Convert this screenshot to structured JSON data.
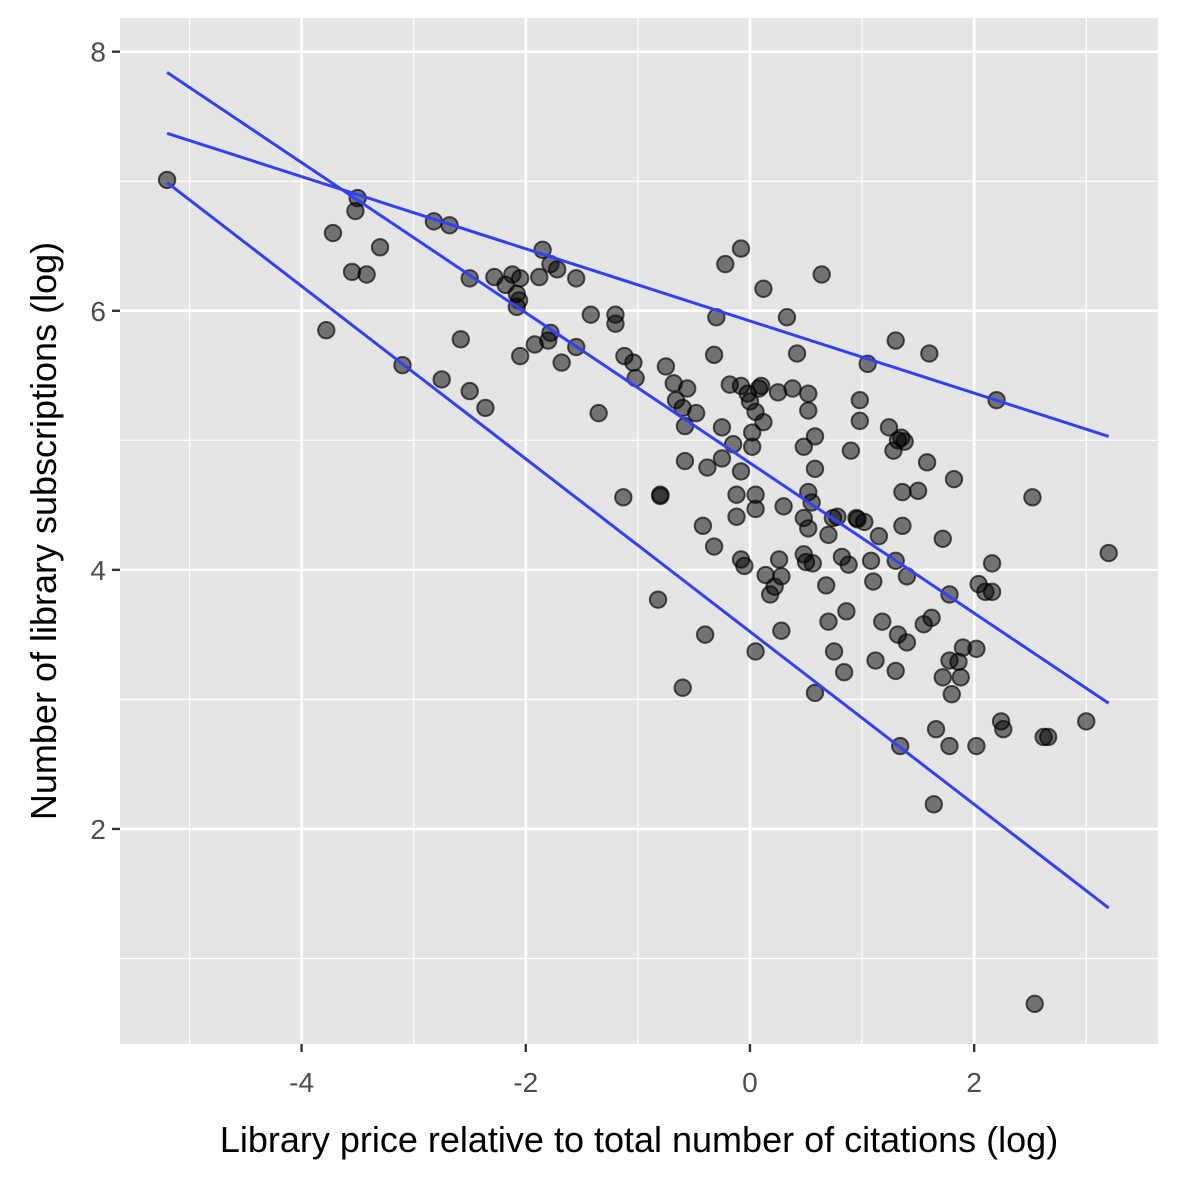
{
  "chart_data": {
    "type": "scatter",
    "title": "",
    "xlabel": "Library price relative to total number of citations (log)",
    "ylabel": "Number of library subscriptions (log)",
    "xlim": [
      -5.62,
      3.64
    ],
    "ylim": [
      0.34,
      8.26
    ],
    "xticks": [
      -4,
      -2,
      0,
      2
    ],
    "xtick_labels": [
      "-4",
      "-2",
      "0",
      "2"
    ],
    "yticks": [
      2,
      4,
      6,
      8
    ],
    "ytick_labels": [
      "2",
      "4",
      "6",
      "8"
    ],
    "grid": true,
    "panel_background": "#e5e5e5",
    "grid_color": "#ffffff",
    "point_color": "#000000",
    "point_alpha": 0.5,
    "line_color": "#3040ff",
    "lines": [
      {
        "x": [
          -5.2,
          3.2
        ],
        "y": [
          7.37,
          5.03
        ]
      },
      {
        "x": [
          -5.2,
          3.2
        ],
        "y": [
          7.84,
          2.97
        ]
      },
      {
        "x": [
          -5.2,
          3.2
        ],
        "y": [
          6.99,
          1.39
        ]
      }
    ],
    "points": [
      {
        "x": -5.2,
        "y": 7.01
      },
      {
        "x": -3.72,
        "y": 6.6
      },
      {
        "x": -3.5,
        "y": 6.87
      },
      {
        "x": -3.52,
        "y": 6.77
      },
      {
        "x": -3.55,
        "y": 6.3
      },
      {
        "x": -3.42,
        "y": 6.28
      },
      {
        "x": -3.3,
        "y": 6.49
      },
      {
        "x": -3.78,
        "y": 5.85
      },
      {
        "x": -3.1,
        "y": 5.58
      },
      {
        "x": -2.82,
        "y": 6.69
      },
      {
        "x": -2.68,
        "y": 6.66
      },
      {
        "x": -2.5,
        "y": 6.25
      },
      {
        "x": -2.58,
        "y": 5.78
      },
      {
        "x": -2.75,
        "y": 5.47
      },
      {
        "x": -2.5,
        "y": 5.38
      },
      {
        "x": -2.36,
        "y": 5.25
      },
      {
        "x": -2.28,
        "y": 6.26
      },
      {
        "x": -2.18,
        "y": 6.2
      },
      {
        "x": -2.12,
        "y": 6.28
      },
      {
        "x": -2.05,
        "y": 6.25
      },
      {
        "x": -2.08,
        "y": 6.13
      },
      {
        "x": -2.06,
        "y": 6.08
      },
      {
        "x": -2.08,
        "y": 6.03
      },
      {
        "x": -2.05,
        "y": 5.65
      },
      {
        "x": -1.92,
        "y": 5.74
      },
      {
        "x": -1.88,
        "y": 6.26
      },
      {
        "x": -1.85,
        "y": 6.47
      },
      {
        "x": -1.78,
        "y": 6.36
      },
      {
        "x": -1.72,
        "y": 6.32
      },
      {
        "x": -1.8,
        "y": 5.77
      },
      {
        "x": -1.78,
        "y": 5.83
      },
      {
        "x": -1.68,
        "y": 5.6
      },
      {
        "x": -1.55,
        "y": 5.72
      },
      {
        "x": -1.55,
        "y": 6.25
      },
      {
        "x": -1.42,
        "y": 5.97
      },
      {
        "x": -1.2,
        "y": 5.97
      },
      {
        "x": -1.2,
        "y": 5.9
      },
      {
        "x": -1.35,
        "y": 5.21
      },
      {
        "x": -1.12,
        "y": 5.65
      },
      {
        "x": -1.04,
        "y": 5.6
      },
      {
        "x": -1.02,
        "y": 5.48
      },
      {
        "x": -1.13,
        "y": 4.56
      },
      {
        "x": -0.8,
        "y": 4.57
      },
      {
        "x": -0.8,
        "y": 4.58
      },
      {
        "x": -0.82,
        "y": 3.77
      },
      {
        "x": -0.75,
        "y": 5.57
      },
      {
        "x": -0.68,
        "y": 5.44
      },
      {
        "x": -0.66,
        "y": 5.31
      },
      {
        "x": -0.6,
        "y": 5.25
      },
      {
        "x": -0.58,
        "y": 5.11
      },
      {
        "x": -0.56,
        "y": 5.4
      },
      {
        "x": -0.48,
        "y": 5.21
      },
      {
        "x": -0.58,
        "y": 4.84
      },
      {
        "x": -0.6,
        "y": 3.09
      },
      {
        "x": -0.42,
        "y": 4.34
      },
      {
        "x": -0.4,
        "y": 3.5
      },
      {
        "x": -0.32,
        "y": 4.18
      },
      {
        "x": -0.38,
        "y": 4.79
      },
      {
        "x": -0.3,
        "y": 5.95
      },
      {
        "x": -0.32,
        "y": 5.66
      },
      {
        "x": -0.25,
        "y": 4.86
      },
      {
        "x": -0.25,
        "y": 5.1
      },
      {
        "x": -0.22,
        "y": 6.36
      },
      {
        "x": -0.18,
        "y": 5.43
      },
      {
        "x": -0.15,
        "y": 4.97
      },
      {
        "x": -0.12,
        "y": 4.58
      },
      {
        "x": -0.12,
        "y": 4.41
      },
      {
        "x": -0.08,
        "y": 4.08
      },
      {
        "x": -0.05,
        "y": 4.03
      },
      {
        "x": -0.08,
        "y": 4.76
      },
      {
        "x": -0.08,
        "y": 6.48
      },
      {
        "x": -0.08,
        "y": 5.42
      },
      {
        "x": -0.02,
        "y": 5.36
      },
      {
        "x": 0.0,
        "y": 5.3
      },
      {
        "x": 0.02,
        "y": 5.06
      },
      {
        "x": 0.02,
        "y": 4.95
      },
      {
        "x": 0.05,
        "y": 5.22
      },
      {
        "x": 0.08,
        "y": 5.4
      },
      {
        "x": 0.1,
        "y": 5.42
      },
      {
        "x": 0.12,
        "y": 5.14
      },
      {
        "x": 0.05,
        "y": 4.58
      },
      {
        "x": 0.05,
        "y": 4.47
      },
      {
        "x": 0.05,
        "y": 3.37
      },
      {
        "x": 0.12,
        "y": 6.17
      },
      {
        "x": 0.14,
        "y": 3.96
      },
      {
        "x": 0.18,
        "y": 3.81
      },
      {
        "x": 0.22,
        "y": 3.87
      },
      {
        "x": 0.26,
        "y": 4.08
      },
      {
        "x": 0.25,
        "y": 5.37
      },
      {
        "x": 0.28,
        "y": 3.95
      },
      {
        "x": 0.28,
        "y": 3.53
      },
      {
        "x": 0.3,
        "y": 4.49
      },
      {
        "x": 0.33,
        "y": 5.95
      },
      {
        "x": 0.38,
        "y": 5.4
      },
      {
        "x": 0.42,
        "y": 5.67
      },
      {
        "x": 0.48,
        "y": 4.95
      },
      {
        "x": 0.48,
        "y": 4.4
      },
      {
        "x": 0.48,
        "y": 4.12
      },
      {
        "x": 0.5,
        "y": 4.06
      },
      {
        "x": 0.52,
        "y": 4.6
      },
      {
        "x": 0.52,
        "y": 4.32
      },
      {
        "x": 0.52,
        "y": 5.23
      },
      {
        "x": 0.52,
        "y": 5.36
      },
      {
        "x": 0.55,
        "y": 4.52
      },
      {
        "x": 0.56,
        "y": 4.05
      },
      {
        "x": 0.58,
        "y": 4.78
      },
      {
        "x": 0.58,
        "y": 5.03
      },
      {
        "x": 0.58,
        "y": 3.05
      },
      {
        "x": 0.64,
        "y": 6.28
      },
      {
        "x": 0.68,
        "y": 3.88
      },
      {
        "x": 0.7,
        "y": 4.27
      },
      {
        "x": 0.7,
        "y": 3.6
      },
      {
        "x": 0.74,
        "y": 4.4
      },
      {
        "x": 0.75,
        "y": 3.37
      },
      {
        "x": 0.78,
        "y": 4.41
      },
      {
        "x": 0.82,
        "y": 4.1
      },
      {
        "x": 0.84,
        "y": 3.21
      },
      {
        "x": 0.86,
        "y": 3.68
      },
      {
        "x": 0.88,
        "y": 4.04
      },
      {
        "x": 0.9,
        "y": 4.92
      },
      {
        "x": 0.95,
        "y": 4.4
      },
      {
        "x": 0.96,
        "y": 4.39
      },
      {
        "x": 0.98,
        "y": 5.15
      },
      {
        "x": 0.98,
        "y": 5.31
      },
      {
        "x": 1.02,
        "y": 4.37
      },
      {
        "x": 1.05,
        "y": 5.59
      },
      {
        "x": 1.08,
        "y": 4.07
      },
      {
        "x": 1.1,
        "y": 3.91
      },
      {
        "x": 1.12,
        "y": 3.3
      },
      {
        "x": 1.15,
        "y": 4.26
      },
      {
        "x": 1.18,
        "y": 3.6
      },
      {
        "x": 1.24,
        "y": 5.1
      },
      {
        "x": 1.28,
        "y": 4.92
      },
      {
        "x": 1.3,
        "y": 4.07
      },
      {
        "x": 1.3,
        "y": 3.22
      },
      {
        "x": 1.32,
        "y": 3.5
      },
      {
        "x": 1.34,
        "y": 2.64
      },
      {
        "x": 1.3,
        "y": 5.77
      },
      {
        "x": 1.32,
        "y": 5.0
      },
      {
        "x": 1.35,
        "y": 5.02
      },
      {
        "x": 1.36,
        "y": 4.6
      },
      {
        "x": 1.36,
        "y": 4.34
      },
      {
        "x": 1.38,
        "y": 4.99
      },
      {
        "x": 1.4,
        "y": 3.95
      },
      {
        "x": 1.4,
        "y": 3.44
      },
      {
        "x": 1.5,
        "y": 4.61
      },
      {
        "x": 1.55,
        "y": 3.58
      },
      {
        "x": 1.58,
        "y": 4.83
      },
      {
        "x": 1.62,
        "y": 3.63
      },
      {
        "x": 1.6,
        "y": 5.67
      },
      {
        "x": 1.64,
        "y": 2.19
      },
      {
        "x": 1.66,
        "y": 2.77
      },
      {
        "x": 1.72,
        "y": 4.24
      },
      {
        "x": 1.72,
        "y": 3.17
      },
      {
        "x": 1.78,
        "y": 3.81
      },
      {
        "x": 1.78,
        "y": 3.3
      },
      {
        "x": 1.8,
        "y": 3.04
      },
      {
        "x": 1.78,
        "y": 2.64
      },
      {
        "x": 1.82,
        "y": 4.7
      },
      {
        "x": 1.86,
        "y": 3.29
      },
      {
        "x": 1.88,
        "y": 3.17
      },
      {
        "x": 1.9,
        "y": 3.4
      },
      {
        "x": 2.02,
        "y": 3.39
      },
      {
        "x": 2.02,
        "y": 2.64
      },
      {
        "x": 2.04,
        "y": 3.89
      },
      {
        "x": 2.1,
        "y": 3.83
      },
      {
        "x": 2.16,
        "y": 4.05
      },
      {
        "x": 2.16,
        "y": 3.83
      },
      {
        "x": 2.2,
        "y": 5.31
      },
      {
        "x": 2.24,
        "y": 2.83
      },
      {
        "x": 2.26,
        "y": 2.77
      },
      {
        "x": 2.52,
        "y": 4.56
      },
      {
        "x": 2.54,
        "y": 0.65
      },
      {
        "x": 2.62,
        "y": 2.71
      },
      {
        "x": 2.66,
        "y": 2.71
      },
      {
        "x": 3.0,
        "y": 2.83
      },
      {
        "x": 3.2,
        "y": 4.13
      }
    ]
  }
}
